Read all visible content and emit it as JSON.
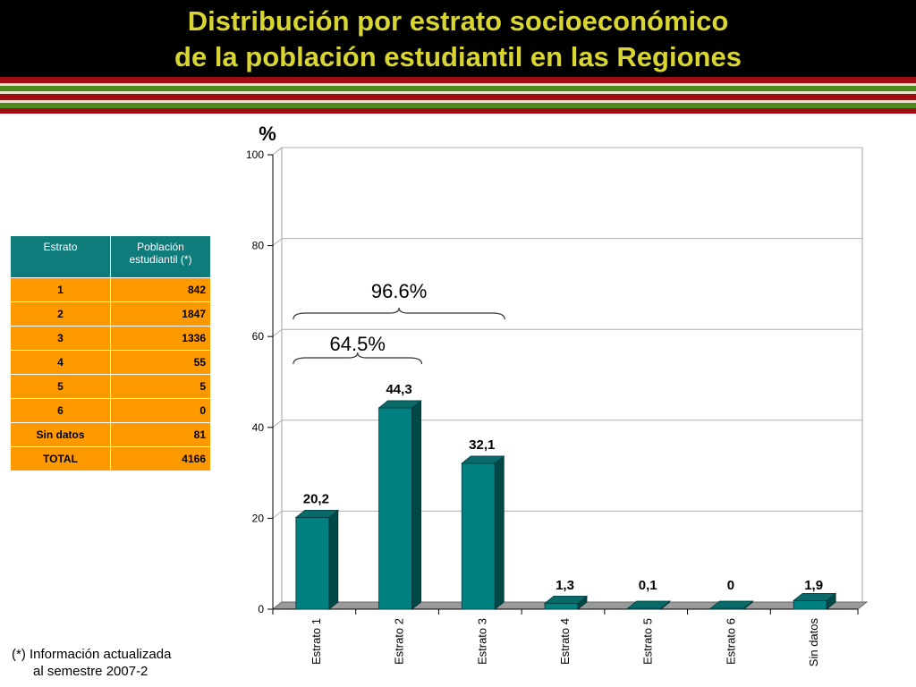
{
  "header": {
    "title_line1": "Distribución por estrato socioeconómico",
    "title_line2": "de la población estudiantil en las Regiones"
  },
  "colors": {
    "title": "#d9d531",
    "header_bg": "#000000",
    "stripe_red": "#a00d14",
    "stripe_green": "#4f8a1e",
    "bar": "#008080",
    "table_header": "#0f7b7b",
    "table_body": "#ff9900"
  },
  "table": {
    "headers": [
      "Estrato",
      "Población estudiantil (*)"
    ],
    "rows": [
      [
        "1",
        "842"
      ],
      [
        "2",
        "1847"
      ],
      [
        "3",
        "1336"
      ],
      [
        "4",
        "55"
      ],
      [
        "5",
        "5"
      ],
      [
        "6",
        "0"
      ],
      [
        "Sin datos",
        "81"
      ],
      [
        "TOTAL",
        "4166"
      ]
    ]
  },
  "footnote": {
    "line1": "(*) Información actualizada",
    "line2": "al semestre 2007-2"
  },
  "chart_data": {
    "type": "bar",
    "style": "3d",
    "ylabel": "%",
    "xlabel": "",
    "ylim": [
      0,
      100
    ],
    "yticks": [
      0,
      20,
      40,
      60,
      80,
      100
    ],
    "grid": true,
    "categories": [
      "Estrato 1",
      "Estrato 2",
      "Estrato 3",
      "Estrato 4",
      "Estrato 5",
      "Estrato 6",
      "Sin datos"
    ],
    "values": [
      20.2,
      44.3,
      32.1,
      1.3,
      0.1,
      0,
      1.9
    ],
    "data_labels": [
      "20,2",
      "44,3",
      "32,1",
      "1,3",
      "0,1",
      "0",
      "1,9"
    ],
    "annotations": [
      {
        "text": "96.6%",
        "spans": [
          "Estrato 1",
          "Estrato 3"
        ]
      },
      {
        "text": "64.5%",
        "spans": [
          "Estrato 1",
          "Estrato 2"
        ]
      }
    ]
  }
}
